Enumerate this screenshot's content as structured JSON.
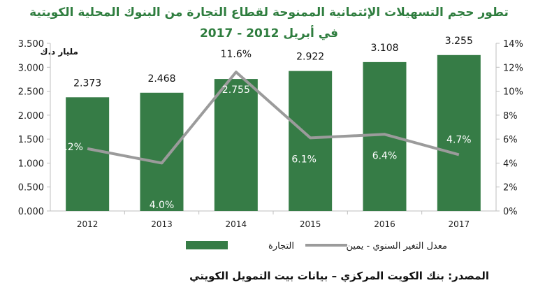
{
  "page": {
    "title_line1": "تطور حجم التسهيلات الإئتمانية الممنوحة لقطاع التجارة من البنوك المحلية الكويتية",
    "title_line2": "في أبريل  2012 - 2017",
    "source": "المصدر: بنك الكويت المركزي – بيانات بيت التمويل الكويتي"
  },
  "colors": {
    "bar": "#367c46",
    "line": "#9b9b9b",
    "title": "#2e7d3e",
    "axis": "#bfbfbf",
    "text": "#222222"
  },
  "chart_data": {
    "type": "bar",
    "categories": [
      "2012",
      "2013",
      "2014",
      "2015",
      "2016",
      "2017"
    ],
    "series": [
      {
        "name": "التجارة",
        "type": "bar",
        "axis": "left",
        "values": [
          2.373,
          2.468,
          2.755,
          2.922,
          3.108,
          3.255
        ],
        "labels": [
          "2.373",
          "2.468",
          "2.755",
          "2.922",
          "3.108",
          "3.255"
        ]
      },
      {
        "name": "معدل التغير السنوي - يمين",
        "type": "line",
        "axis": "right",
        "values": [
          5.2,
          4.0,
          11.6,
          6.1,
          6.4,
          4.7
        ],
        "labels": [
          "5.2%",
          "4.0%",
          "11.6%",
          "6.1%",
          "6.4%",
          "4.7%"
        ]
      }
    ],
    "ylim_left": [
      0,
      3.5
    ],
    "ylim_right": [
      0,
      14
    ],
    "yticks_left": [
      "0.000",
      "0.500",
      "1.000",
      "1.500",
      "2.000",
      "2.500",
      "3.000",
      "3.500"
    ],
    "yticks_right": [
      "0%",
      "2%",
      "4%",
      "6%",
      "8%",
      "10%",
      "12%",
      "14%"
    ],
    "ylabel_left": "مليار د.ك",
    "grid": false,
    "legend_position": "bottom"
  }
}
